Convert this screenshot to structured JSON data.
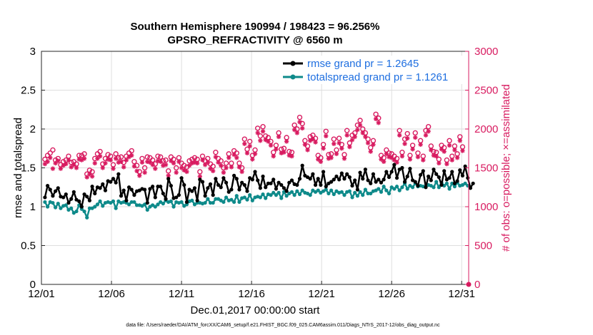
{
  "chart_data": {
    "type": "line",
    "title": "Southern Hemisphere 190994 / 198423 = 96.256%",
    "subtitle": "GPSRO_REFRACTIVITY @ 6560 m",
    "xlabel": "Dec.01,2017 00:00:00 start",
    "ylabel_left": "rmse and totalspread",
    "ylabel_right": "# of obs: o=possible; ×=assimilated",
    "footer": "data file: /Users/raeder/DAI/ATM_forcXX/CAM6_setup/f.e21.FHIST_BGC.f09_025.CAM6assim.011/Diags_NTrS_2017-12/obs_diag_output.nc",
    "xlim": [
      0,
      30.5
    ],
    "ylim_left": [
      0,
      3
    ],
    "ylim_right": [
      0,
      3000
    ],
    "x_ticks": [
      0,
      5,
      10,
      15,
      20,
      25,
      30
    ],
    "x_tick_labels": [
      "12/01",
      "12/06",
      "12/11",
      "12/16",
      "12/21",
      "12/26",
      "12/31"
    ],
    "y_ticks_left": [
      "0",
      "0.5",
      "1",
      "1.5",
      "2",
      "2.5",
      "3"
    ],
    "y_ticks_right": [
      "0",
      "500",
      "1000",
      "1500",
      "2000",
      "2500",
      "3000"
    ],
    "legend": [
      {
        "label": "rmse grand pr = 1.2645",
        "color": "#000000"
      },
      {
        "label": "totalspread grand pr = 1.1261",
        "color": "#0e8a8a"
      }
    ],
    "colors": {
      "rmse": "#000000",
      "spread": "#0e8a8a",
      "obs": "#d81b60"
    },
    "series": [
      {
        "name": "rmse",
        "axis": "left",
        "values": [
          1.12,
          1.27,
          1.22,
          1.14,
          1.2,
          1.24,
          1.13,
          1.12,
          1.16,
          1.05,
          1.1,
          1.19,
          1.09,
          1.07,
          1.0,
          1.16,
          1.13,
          1.08,
          1.26,
          1.17,
          1.25,
          1.24,
          1.29,
          1.21,
          1.33,
          1.32,
          1.36,
          1.31,
          1.42,
          1.14,
          1.21,
          1.08,
          1.25,
          1.22,
          1.15,
          1.2,
          1.21,
          1.23,
          1.22,
          1.05,
          1.23,
          1.26,
          1.12,
          1.26,
          1.26,
          1.17,
          1.1,
          1.36,
          1.27,
          1.11,
          1.12,
          1.15,
          1.37,
          1.28,
          1.06,
          1.22,
          1.2,
          1.24,
          1.08,
          1.35,
          1.32,
          1.14,
          1.24,
          1.29,
          1.15,
          1.36,
          1.28,
          1.25,
          1.37,
          1.31,
          1.19,
          1.22,
          1.4,
          1.36,
          1.22,
          1.31,
          1.28,
          1.2,
          1.37,
          1.35,
          1.45,
          1.34,
          1.24,
          1.39,
          1.25,
          1.3,
          1.3,
          1.35,
          1.23,
          1.31,
          1.28,
          1.24,
          1.2,
          1.31,
          1.34,
          1.29,
          1.28,
          1.36,
          1.53,
          1.4,
          1.38,
          1.36,
          1.42,
          1.28,
          1.36,
          1.28,
          1.45,
          1.26,
          1.3,
          1.32,
          1.35,
          1.39,
          1.35,
          1.43,
          1.36,
          1.42,
          1.38,
          1.27,
          1.34,
          1.22,
          1.44,
          1.36,
          1.48,
          1.34,
          1.3,
          1.42,
          1.32,
          1.35,
          1.31,
          1.35,
          1.45,
          1.38,
          1.45,
          1.54,
          1.37,
          1.48,
          1.5,
          1.32,
          1.39,
          1.49,
          1.34,
          1.32,
          1.27,
          1.41,
          1.46,
          1.25,
          1.39,
          1.34,
          1.48,
          1.42,
          1.38,
          1.28,
          1.46,
          1.35,
          1.37,
          1.45,
          1.3,
          1.33,
          1.47,
          1.4,
          1.52,
          1.37,
          1.24,
          1.3
        ]
      },
      {
        "name": "totalspread",
        "axis": "left",
        "values": [
          1.06,
          1.0,
          1.06,
          1.05,
          0.99,
          1.04,
          0.98,
          1.01,
          1.02,
          0.96,
          0.98,
          0.92,
          0.94,
          1.02,
          0.97,
          0.94,
          0.86,
          0.98,
          0.98,
          1.0,
          1.03,
          1.07,
          1.01,
          1.05,
          1.06,
          1.05,
          1.07,
          0.98,
          1.07,
          1.05,
          1.06,
          1.05,
          1.03,
          1.06,
          1.06,
          1.02,
          1.02,
          1.01,
          1.03,
          0.96,
          1.0,
          1.02,
          1.0,
          1.03,
          1.06,
          1.04,
          1.08,
          1.06,
          1.07,
          1.0,
          1.06,
          1.05,
          1.06,
          1.01,
          1.03,
          1.07,
          1.08,
          1.03,
          1.05,
          1.05,
          1.04,
          1.05,
          1.1,
          1.05,
          1.05,
          1.1,
          1.1,
          1.08,
          1.06,
          1.12,
          1.08,
          1.09,
          1.06,
          1.14,
          1.06,
          1.11,
          1.12,
          1.09,
          1.15,
          1.08,
          1.12,
          1.13,
          1.12,
          1.16,
          1.11,
          1.16,
          1.15,
          1.18,
          1.15,
          1.18,
          1.11,
          1.19,
          1.14,
          1.17,
          1.19,
          1.15,
          1.2,
          1.16,
          1.21,
          1.18,
          1.17,
          1.15,
          1.21,
          1.19,
          1.21,
          1.18,
          1.2,
          1.22,
          1.17,
          1.21,
          1.16,
          1.2,
          1.18,
          1.19,
          1.15,
          1.19,
          1.2,
          1.12,
          1.18,
          1.14,
          1.19,
          1.15,
          1.22,
          1.17,
          1.17,
          1.2,
          1.21,
          1.23,
          1.19,
          1.26,
          1.21,
          1.17,
          1.25,
          1.23,
          1.26,
          1.21,
          1.25,
          1.3,
          1.23,
          1.27,
          1.25,
          1.3,
          1.26,
          1.27,
          1.26,
          1.26,
          1.28,
          1.27,
          1.25,
          1.32,
          1.25,
          1.31,
          1.27,
          1.3,
          1.23,
          1.3,
          1.26,
          1.31,
          1.27,
          1.28,
          1.3,
          1.27
        ]
      },
      {
        "name": "obs possible",
        "axis": "right",
        "values": [
          1610,
          1660,
          1690,
          1730,
          1600,
          1620,
          1540,
          1580,
          1600,
          1650,
          1570,
          1580,
          1550,
          1660,
          1660,
          1680,
          1420,
          1470,
          1450,
          1620,
          1680,
          1710,
          1550,
          1620,
          1670,
          1650,
          1540,
          1680,
          1630,
          1640,
          1570,
          1650,
          1690,
          1720,
          1580,
          1530,
          1450,
          1620,
          1500,
          1640,
          1630,
          1600,
          1550,
          1650,
          1640,
          1590,
          1600,
          1460,
          1640,
          1610,
          1500,
          1630,
          1560,
          1530,
          1510,
          1590,
          1610,
          1630,
          1610,
          1450,
          1650,
          1590,
          1620,
          1550,
          1520,
          1700,
          1620,
          1590,
          1500,
          1560,
          1680,
          1560,
          1720,
          1690,
          1560,
          1500,
          1870,
          1740,
          1840,
          1660,
          1730,
          2010,
          1910,
          2030,
          1910,
          1890,
          1840,
          1700,
          1790,
          1950,
          1740,
          1750,
          1890,
          1710,
          1700,
          2050,
          2000,
          2150,
          2070,
          1850,
          1780,
          1900,
          1920,
          1880,
          1660,
          1630,
          1800,
          1970,
          1670,
          1680,
          1870,
          1730,
          1880,
          1800,
          1670,
          1980,
          1820,
          1920,
          1950,
          2050,
          2110,
          2000,
          1950,
          1870,
          1760,
          1850,
          2190,
          2140,
          1660,
          1630,
          1730,
          1690,
          1680,
          1650,
          1620,
          1980,
          1700,
          1870,
          1940,
          1660,
          1790,
          1950,
          1690,
          1850,
          1650,
          1980,
          2030,
          1780,
          1710,
          1700,
          1610,
          1790,
          1760,
          1600,
          1850,
          1650,
          1780,
          1680,
          1900,
          1770
        ]
      },
      {
        "name": "obs assimilated",
        "axis": "right",
        "values": [
          1550,
          1580,
          1630,
          1490,
          1560,
          1590,
          1490,
          1530,
          1550,
          1600,
          1510,
          1540,
          1500,
          1610,
          1600,
          1620,
          1380,
          1420,
          1390,
          1560,
          1620,
          1650,
          1500,
          1560,
          1610,
          1600,
          1490,
          1620,
          1570,
          1580,
          1510,
          1600,
          1640,
          1660,
          1520,
          1460,
          1400,
          1570,
          1440,
          1580,
          1570,
          1540,
          1490,
          1590,
          1580,
          1530,
          1540,
          1400,
          1590,
          1560,
          1440,
          1580,
          1500,
          1470,
          1450,
          1530,
          1560,
          1570,
          1560,
          1390,
          1600,
          1540,
          1570,
          1490,
          1460,
          1640,
          1570,
          1530,
          1440,
          1500,
          1630,
          1510,
          1670,
          1630,
          1510,
          1450,
          1810,
          1690,
          1780,
          1610,
          1680,
          1950,
          1850,
          1970,
          1860,
          1840,
          1790,
          1650,
          1740,
          1900,
          1690,
          1700,
          1840,
          1660,
          1650,
          1990,
          1950,
          2090,
          2010,
          1800,
          1730,
          1850,
          1870,
          1830,
          1610,
          1580,
          1750,
          1910,
          1620,
          1630,
          1810,
          1680,
          1820,
          1750,
          1620,
          1920,
          1770,
          1860,
          1900,
          1990,
          2050,
          1950,
          1900,
          1820,
          1710,
          1800,
          2130,
          2080,
          1610,
          1580,
          1680,
          1640,
          1630,
          1600,
          1570,
          1920,
          1650,
          1810,
          1880,
          1610,
          1740,
          1890,
          1640,
          1800,
          1600,
          1920,
          1970,
          1730,
          1660,
          1650,
          1560,
          1740,
          1710,
          1550,
          1790,
          1600,
          1730,
          1630,
          1850,
          1720
        ]
      }
    ]
  }
}
